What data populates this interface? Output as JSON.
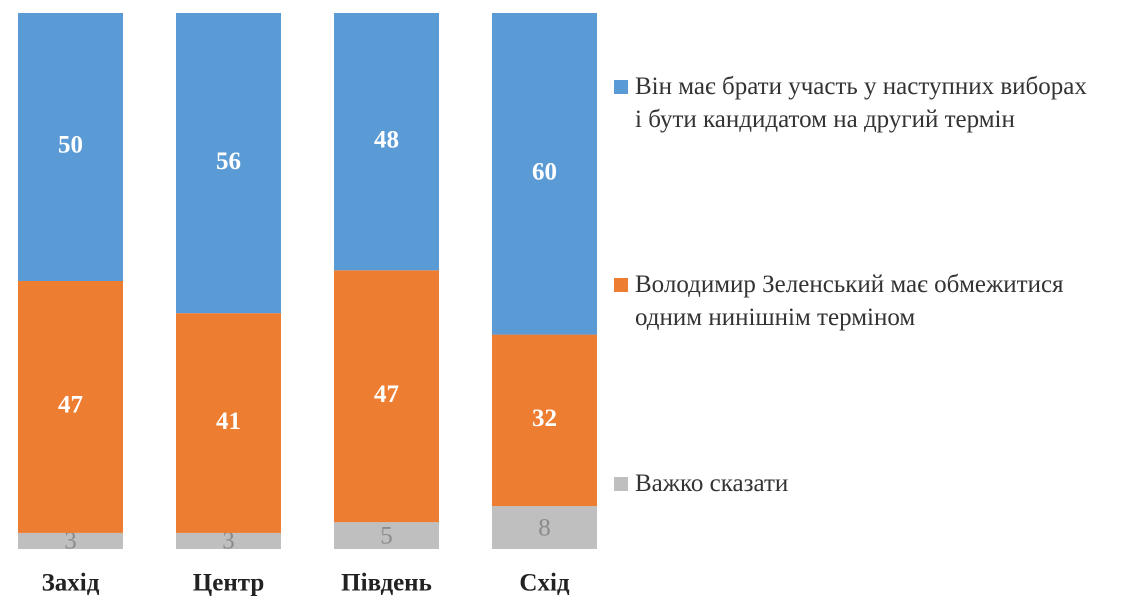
{
  "chart_data": {
    "type": "stacked-bar",
    "categories": [
      "Захід",
      "Центр",
      "Південь",
      "Схід"
    ],
    "series": [
      {
        "name": "Він має брати участь у наступних виборах і бути кандидатом на другий термін",
        "color": "#5b9bd5",
        "values": [
          50,
          56,
          48,
          60
        ]
      },
      {
        "name": "Володимир Зеленський має обмежитися одним нинішнім терміном",
        "color": "#ed7d31",
        "values": [
          47,
          41,
          47,
          32
        ]
      },
      {
        "name": "Важко сказати",
        "color": "#bfbfbf",
        "values": [
          3,
          3,
          5,
          8
        ]
      }
    ]
  }
}
